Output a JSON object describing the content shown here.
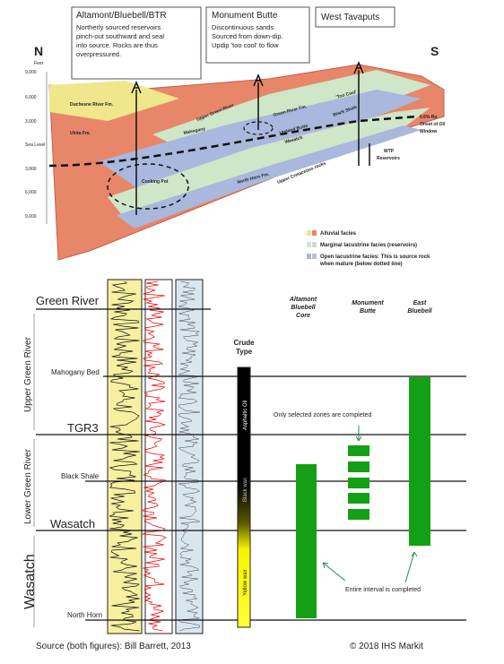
{
  "top_figure": {
    "callouts": [
      {
        "title": "Altamont/Bluebell/BTR",
        "lines": [
          "Northerly sourced reservoirs",
          "pinch-out southward and seal",
          "into source. Rocks are thus",
          "overpressured."
        ]
      },
      {
        "title": "Monument Butte",
        "lines": [
          "Discontinuous sands",
          "Sourced from down-dip.",
          "Updip 'too cool' to flow"
        ]
      },
      {
        "title": "West Tavaputs",
        "lines": []
      }
    ],
    "north": "N",
    "feet": "Feet",
    "south": "S",
    "depth_labels": [
      "9,000",
      "6,000",
      "3,000",
      "Sea Level",
      "3,000",
      "6,000",
      "9,000"
    ],
    "formations": [
      "Duchesne River Fm.",
      "Uinta Fm.",
      "Mahogany",
      "Upper Green River",
      "Green River Fm.",
      "'Too Cool'",
      "Black Shale",
      "Uteland Butte",
      "Wasatch",
      "Cooking Pot",
      "North Horn Fm.",
      "Upper Cretaceous rocks"
    ],
    "ro_lines": [
      "0.6% Ro",
      "Onset of Oil",
      "Window"
    ],
    "wtp_lines": [
      "WTP",
      "Reservoirs"
    ],
    "legend": [
      "Alluvial facies",
      "Marginal lacustrine facies (reservoirs)",
      "Open lacustrine facies: This is source rock",
      "when mature (below dotted line)"
    ]
  },
  "bottom_figure": {
    "tops": [
      "Green River",
      "Mahogany Bed",
      "TGR3",
      "Black Shale",
      "Wasatch",
      "North Horn"
    ],
    "intervals": [
      "Upper Green River",
      "Lower Green River",
      "Wasatch"
    ],
    "crude_type": [
      "Crude",
      "Type"
    ],
    "crude_labels": [
      "Asphaltic Oil",
      "Black wax",
      "Yellow wax"
    ],
    "columns": [
      [
        "Altamont",
        "Bluebell",
        "Core"
      ],
      [
        "Monument",
        "Butte"
      ],
      [
        "East",
        "Bluebell"
      ]
    ],
    "notes": [
      "Only selected zones are completed",
      "Entire interval is completed"
    ]
  },
  "footer": {
    "source": "Source (both figures): Bill Barrett, 2013",
    "copyright": "© 2018 IHS Markit"
  }
}
